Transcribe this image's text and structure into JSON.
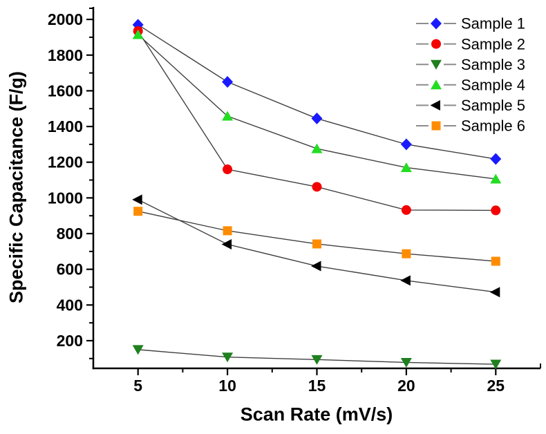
{
  "chart_data": {
    "type": "line",
    "title": "",
    "xlabel": "Scan Rate (mV/s)",
    "ylabel": "Specific Capacitance (F/g)",
    "x": [
      5,
      10,
      15,
      20,
      25
    ],
    "xlim": [
      2.5,
      27.5
    ],
    "ylim": [
      45,
      2070
    ],
    "x_major_ticks": [
      5,
      10,
      15,
      20,
      25
    ],
    "x_minor_ticks": [
      7.5,
      12.5,
      17.5,
      22.5
    ],
    "y_major_ticks": [
      200,
      400,
      600,
      800,
      1000,
      1200,
      1400,
      1600,
      1800,
      2000
    ],
    "y_minor_ticks": [
      100,
      300,
      500,
      700,
      900,
      1100,
      1300,
      1500,
      1700,
      1900
    ],
    "grid": false,
    "legend_position": "top-right",
    "line_color": "#3f3f3f",
    "legend_line_color": "#8c8c8c",
    "axis_color": "#000000",
    "background_color": "#ffffff",
    "series": [
      {
        "name": "Sample 1",
        "marker": "diamond",
        "color": "#1a1aff",
        "values": [
          1970,
          1650,
          1445,
          1300,
          1218
        ]
      },
      {
        "name": "Sample 2",
        "marker": "circle",
        "color": "#f50000",
        "values": [
          1935,
          1160,
          1062,
          932,
          930
        ]
      },
      {
        "name": "Sample 3",
        "marker": "triangle-down",
        "color": "#1e801e",
        "values": [
          150,
          108,
          94,
          78,
          68
        ]
      },
      {
        "name": "Sample 4",
        "marker": "triangle-up",
        "color": "#22dd22",
        "values": [
          1915,
          1458,
          1276,
          1170,
          1106
        ]
      },
      {
        "name": "Sample 5",
        "marker": "triangle-left",
        "color": "#000000",
        "values": [
          990,
          740,
          618,
          537,
          472
        ]
      },
      {
        "name": "Sample 6",
        "marker": "square",
        "color": "#ff8c00",
        "values": [
          925,
          816,
          742,
          687,
          645
        ]
      }
    ]
  }
}
